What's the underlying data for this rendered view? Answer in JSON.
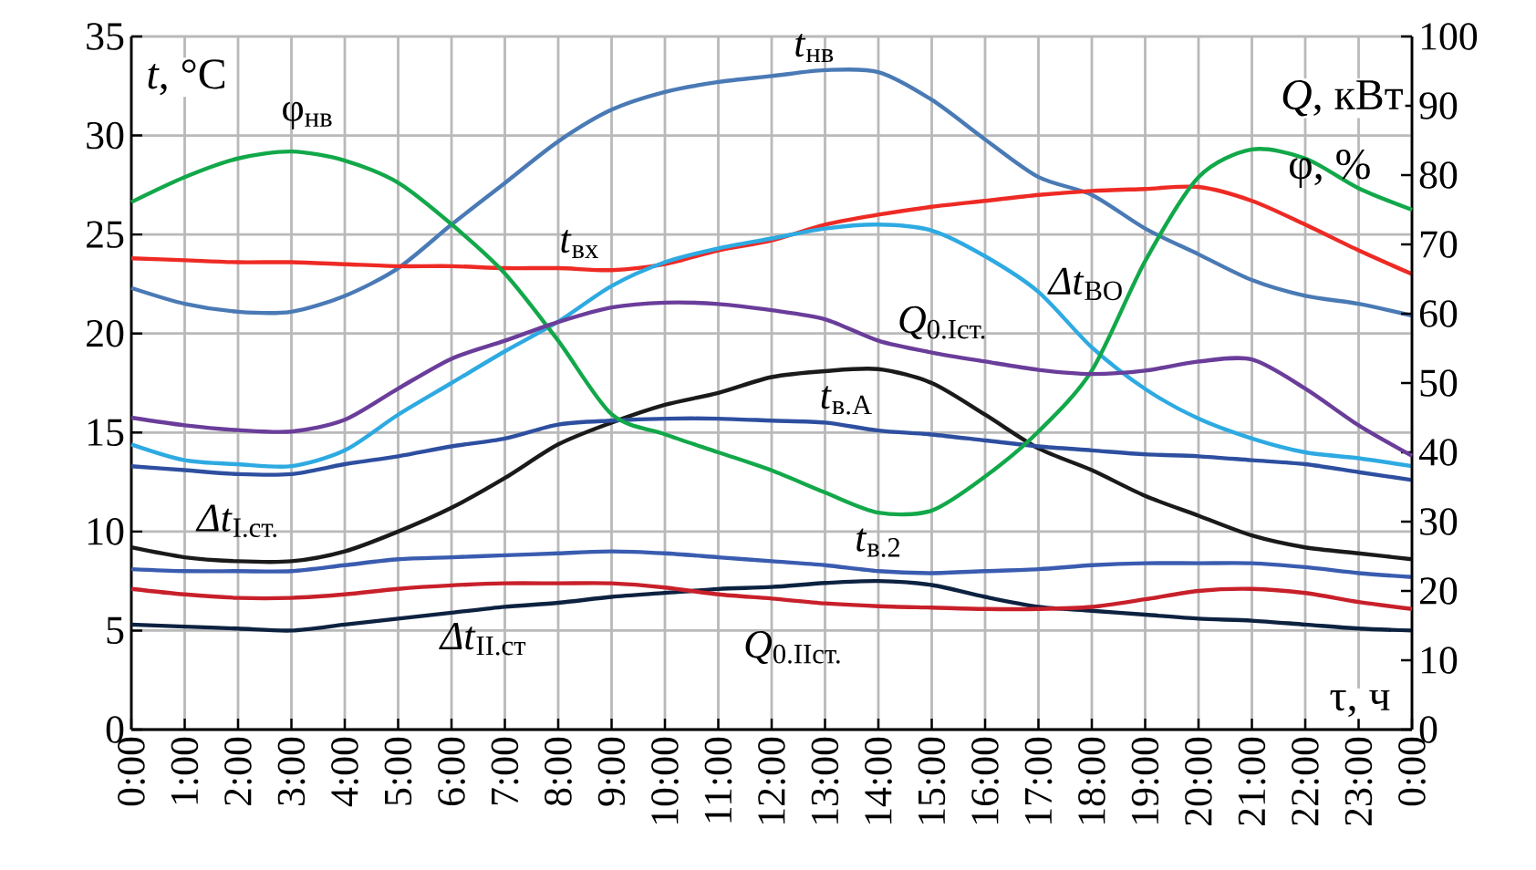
{
  "chart_data": {
    "type": "line",
    "ylabel": "*t*, °C",
    "y2label": "*Q*, кВт",
    "xlabel": "τ, ч",
    "annotations": [
      "φ, %"
    ],
    "x": [
      0,
      1,
      2,
      3,
      4,
      5,
      6,
      7,
      8,
      9,
      10,
      11,
      12,
      13,
      14,
      15,
      16,
      17,
      18,
      19,
      20,
      21,
      22,
      23,
      24
    ],
    "xlim": [
      0,
      24
    ],
    "xticks": [
      {
        "value": 0,
        "label": "0:00"
      },
      {
        "value": 1,
        "label": "1:00"
      },
      {
        "value": 2,
        "label": "2:00"
      },
      {
        "value": 3,
        "label": "3:00"
      },
      {
        "value": 4,
        "label": "4:00"
      },
      {
        "value": 5,
        "label": "5:00"
      },
      {
        "value": 6,
        "label": "6:00"
      },
      {
        "value": 7,
        "label": "7:00"
      },
      {
        "value": 8,
        "label": "8:00"
      },
      {
        "value": 9,
        "label": "9:00"
      },
      {
        "value": 10,
        "label": "10:00"
      },
      {
        "value": 11,
        "label": "11:00"
      },
      {
        "value": 12,
        "label": "12:00"
      },
      {
        "value": 13,
        "label": "13:00"
      },
      {
        "value": 14,
        "label": "14:00"
      },
      {
        "value": 15,
        "label": "15:00"
      },
      {
        "value": 16,
        "label": "16:00"
      },
      {
        "value": 17,
        "label": "17:00"
      },
      {
        "value": 18,
        "label": "18:00"
      },
      {
        "value": 19,
        "label": "19:00"
      },
      {
        "value": 20,
        "label": "20:00"
      },
      {
        "value": 21,
        "label": "21:00"
      },
      {
        "value": 22,
        "label": "22:00"
      },
      {
        "value": 23,
        "label": "23:00"
      },
      {
        "value": 24,
        "label": "0:00"
      }
    ],
    "ylim": [
      0,
      35
    ],
    "yticks": [
      0,
      5,
      10,
      15,
      20,
      25,
      30,
      35
    ],
    "y2lim": [
      0,
      100
    ],
    "y2ticks": [
      0,
      10,
      20,
      30,
      40,
      50,
      60,
      70,
      80,
      90,
      100
    ],
    "grid": true,
    "legend": false,
    "marker": "none",
    "line_style": "solid",
    "series": [
      {
        "name": "*t*$_{нв}$",
        "color": "#4a7ab5",
        "values": [
          22.3,
          21.5,
          21.1,
          21.1,
          21.9,
          23.3,
          25.5,
          27.6,
          29.7,
          31.3,
          32.2,
          32.7,
          33.0,
          33.3,
          33.2,
          31.8,
          29.8,
          27.9,
          27.0,
          25.3,
          24.0,
          22.7,
          21.9,
          21.5,
          20.9
        ]
      },
      {
        "name": "φ$_{нв}$",
        "color": "#12a84a",
        "axis": "y2",
        "values": [
          76.1,
          79.7,
          82.4,
          83.4,
          82.1,
          78.9,
          72.9,
          65.8,
          56.1,
          45.5,
          42.6,
          40.0,
          37.4,
          34.2,
          31.3,
          31.6,
          36.5,
          43.0,
          51.8,
          67.6,
          79.7,
          83.7,
          82.4,
          78.1,
          75.0
        ]
      },
      {
        "name": "*t*$_{вх}$",
        "color": "#ee2a24",
        "values": [
          23.8,
          23.7,
          23.6,
          23.6,
          23.5,
          23.4,
          23.4,
          23.3,
          23.3,
          23.2,
          23.5,
          24.2,
          24.7,
          25.5,
          26.0,
          26.4,
          26.7,
          27.0,
          27.2,
          27.3,
          27.4,
          26.7,
          25.5,
          24.2,
          23.0
        ]
      },
      {
        "name": "*Δt*$_{ВО}$",
        "color": "#2eaae2",
        "values": [
          14.4,
          13.6,
          13.4,
          13.3,
          14.1,
          15.9,
          17.5,
          19.1,
          20.6,
          22.4,
          23.6,
          24.3,
          24.8,
          25.3,
          25.5,
          25.2,
          23.9,
          22.1,
          19.3,
          17.2,
          15.7,
          14.7,
          14.0,
          13.7,
          13.3
        ]
      },
      {
        "name": "*Q*$_{0.Iст.}$",
        "color": "#6a3d9a",
        "axis": "y2",
        "values": [
          45.0,
          43.9,
          43.2,
          43.0,
          44.7,
          49.2,
          53.5,
          56.1,
          58.8,
          60.9,
          61.6,
          61.4,
          60.5,
          59.2,
          56.1,
          54.4,
          53.1,
          51.9,
          51.3,
          51.8,
          53.1,
          53.4,
          49.2,
          43.9,
          39.5
        ]
      },
      {
        "name": "*Δt*$_{I.ст.}$",
        "color": "#1a1a1a",
        "values": [
          9.2,
          8.7,
          8.5,
          8.5,
          9.0,
          10.0,
          11.2,
          12.7,
          14.4,
          15.5,
          16.4,
          17.0,
          17.8,
          18.1,
          18.2,
          17.5,
          15.9,
          14.2,
          13.1,
          11.8,
          10.8,
          9.8,
          9.2,
          8.9,
          8.6
        ]
      },
      {
        "name": "*t*$_{в.А}$",
        "color": "#2e4fa0",
        "values": [
          13.3,
          13.1,
          12.9,
          12.9,
          13.4,
          13.8,
          14.3,
          14.7,
          15.4,
          15.6,
          15.7,
          15.7,
          15.6,
          15.5,
          15.1,
          14.9,
          14.6,
          14.3,
          14.1,
          13.9,
          13.8,
          13.6,
          13.4,
          13.0,
          12.6
        ]
      },
      {
        "name": "*t*$_{в.2}$",
        "color": "#3a5cb0",
        "values": [
          8.1,
          8.0,
          8.0,
          8.0,
          8.3,
          8.6,
          8.7,
          8.8,
          8.9,
          9.0,
          8.9,
          8.7,
          8.5,
          8.3,
          8.0,
          7.9,
          8.0,
          8.1,
          8.3,
          8.4,
          8.4,
          8.4,
          8.2,
          7.9,
          7.7
        ]
      },
      {
        "name": "*Q*$_{0.IIст.}$",
        "color": "#c8202a",
        "axis": "y2",
        "values": [
          20.3,
          19.5,
          19.0,
          19.0,
          19.5,
          20.3,
          20.8,
          21.1,
          21.1,
          21.1,
          20.5,
          19.5,
          18.9,
          18.2,
          17.8,
          17.6,
          17.4,
          17.4,
          17.7,
          18.8,
          20.0,
          20.3,
          19.7,
          18.4,
          17.4
        ]
      },
      {
        "name": "*Δt*$_{II.ст}$",
        "color": "#0d2240",
        "values": [
          5.3,
          5.2,
          5.1,
          5.0,
          5.3,
          5.6,
          5.9,
          6.2,
          6.4,
          6.7,
          6.9,
          7.1,
          7.2,
          7.4,
          7.5,
          7.3,
          6.7,
          6.2,
          6.0,
          5.8,
          5.6,
          5.5,
          5.3,
          5.1,
          5.0
        ]
      }
    ]
  }
}
